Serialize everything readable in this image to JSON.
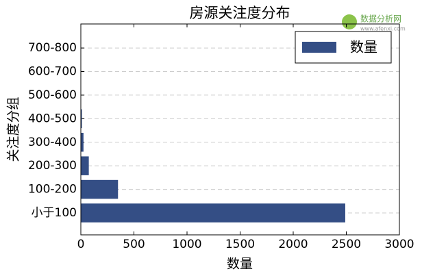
{
  "chart_data": {
    "type": "barh",
    "title": "房源关注度分布",
    "xlabel": "数量",
    "ylabel": "关注度分组",
    "categories": [
      "小于100",
      "100-200",
      "200-300",
      "300-400",
      "400-500",
      "500-600",
      "600-700",
      "700-800"
    ],
    "series": [
      {
        "name": "数量",
        "color": "#344e85",
        "values": [
          2490,
          350,
          75,
          25,
          10,
          0,
          0,
          0
        ]
      }
    ],
    "xlim": [
      0,
      3000
    ],
    "xticks": [
      0,
      500,
      1000,
      1500,
      2000,
      2500,
      3000
    ],
    "grid": true,
    "legend": "upper right",
    "watermark": {
      "name": "数据分析网",
      "url": "www.afenxi.com"
    }
  }
}
